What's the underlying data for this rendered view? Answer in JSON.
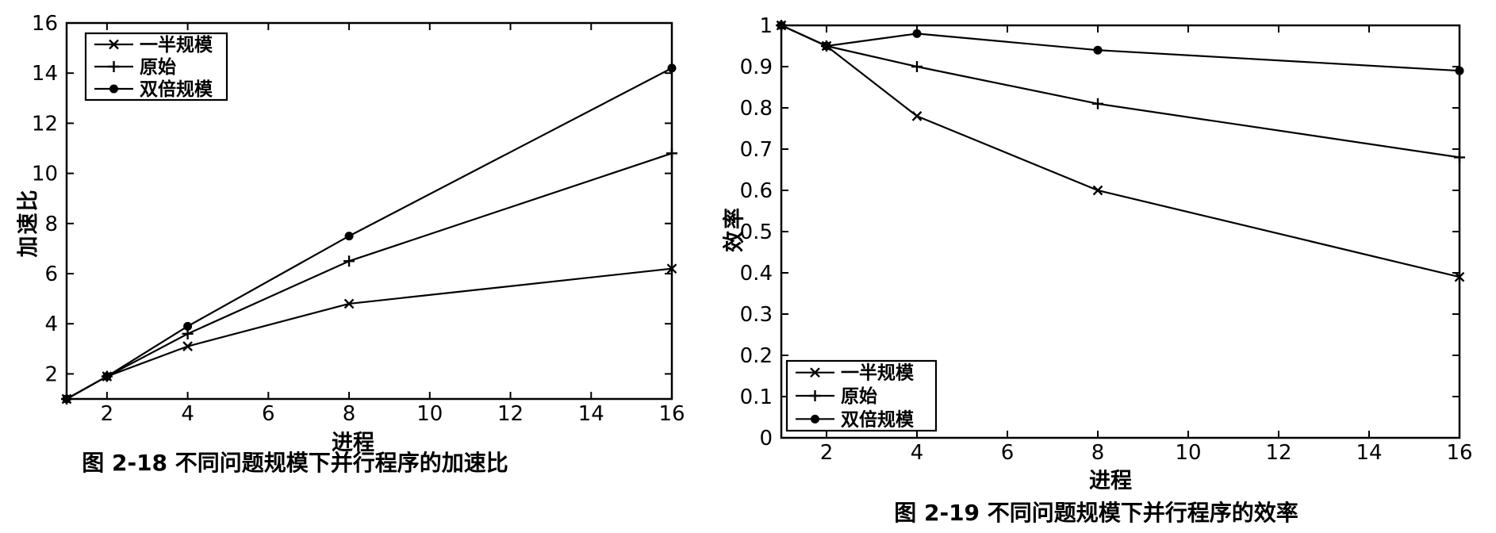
{
  "figure": {
    "background": "#ffffff",
    "ink": "#000000"
  },
  "chart_data": [
    {
      "id": "speedup",
      "type": "line",
      "title": "图 2-18  不同问题规模下并行程序的加速比",
      "xlabel": "进程",
      "ylabel": "加速比",
      "x": [
        1,
        2,
        4,
        8,
        16
      ],
      "series": [
        {
          "name": "一半规模",
          "marker": "x",
          "values": [
            1,
            1.9,
            3.1,
            4.8,
            6.2
          ]
        },
        {
          "name": "原始",
          "marker": "plus",
          "values": [
            1,
            1.9,
            3.6,
            6.5,
            10.8
          ]
        },
        {
          "name": "双倍规模",
          "marker": "dot",
          "values": [
            1,
            1.9,
            3.9,
            7.5,
            14.2
          ]
        }
      ],
      "xlim": [
        1,
        16
      ],
      "ylim": [
        1,
        16
      ],
      "xtick_values": [
        2,
        4,
        6,
        8,
        10,
        12,
        14,
        16
      ],
      "xtick_labels": [
        "2",
        "4",
        "6",
        "8",
        "10",
        "12",
        "14",
        "16"
      ],
      "ytick_values": [
        2,
        4,
        6,
        8,
        10,
        12,
        14,
        16
      ],
      "ytick_labels": [
        "2",
        "4",
        "6",
        "8",
        "10",
        "12",
        "14",
        "16"
      ],
      "grid": false,
      "legend_position": "top-left",
      "line_color": "#000000"
    },
    {
      "id": "efficiency",
      "type": "line",
      "title": "图 2-19  不同问题规模下并行程序的效率",
      "xlabel": "进程",
      "ylabel": "效率",
      "x": [
        1,
        2,
        4,
        8,
        16
      ],
      "series": [
        {
          "name": "一半规模",
          "marker": "x",
          "values": [
            1,
            0.95,
            0.78,
            0.6,
            0.39
          ]
        },
        {
          "name": "原始",
          "marker": "plus",
          "values": [
            1,
            0.95,
            0.9,
            0.81,
            0.68
          ]
        },
        {
          "name": "双倍规模",
          "marker": "dot",
          "values": [
            1,
            0.95,
            0.98,
            0.94,
            0.89
          ]
        }
      ],
      "xlim": [
        1,
        16
      ],
      "ylim": [
        0,
        1
      ],
      "xtick_values": [
        2,
        4,
        6,
        8,
        10,
        12,
        14,
        16
      ],
      "xtick_labels": [
        "2",
        "4",
        "6",
        "8",
        "10",
        "12",
        "14",
        "16"
      ],
      "ytick_values": [
        0,
        0.1,
        0.2,
        0.3,
        0.4,
        0.5,
        0.6,
        0.7,
        0.8,
        0.9,
        1
      ],
      "ytick_labels": [
        "0",
        "0.1",
        "0.2",
        "0.3",
        "0.4",
        "0.5",
        "0.6",
        "0.7",
        "0.8",
        "0.9",
        "1"
      ],
      "grid": false,
      "legend_position": "bottom-left",
      "line_color": "#000000"
    }
  ]
}
